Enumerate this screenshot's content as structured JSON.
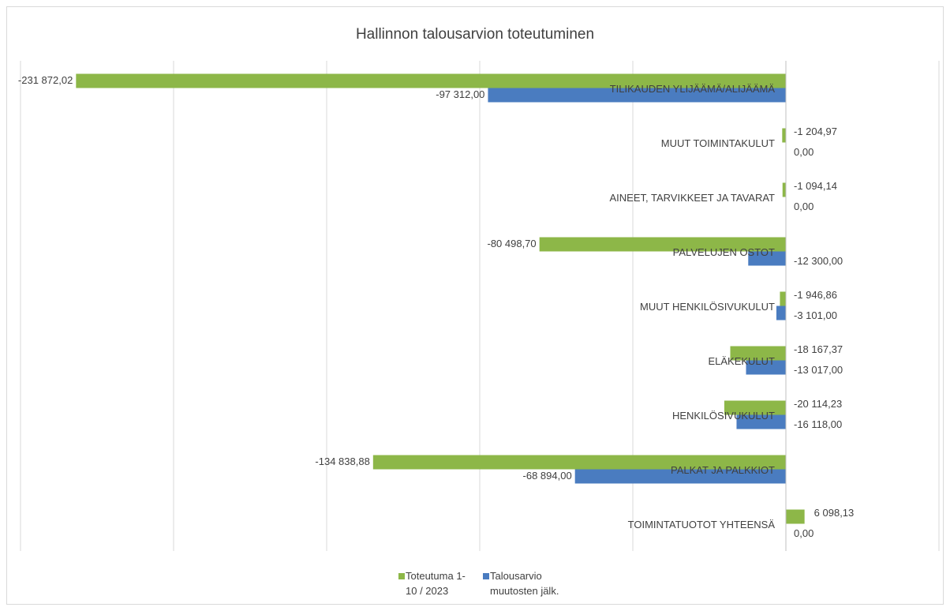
{
  "chart_data": {
    "type": "bar",
    "orientation": "horizontal",
    "title": "Hallinnon talousarvion toteutuminen",
    "categories": [
      "TILIKAUDEN YLIJÄÄMÄ/ALIJÄÄMÄ",
      "MUUT TOIMINTAKULUT",
      "AINEET, TARVIKKEET JA TAVARAT",
      "PALVELUJEN OSTOT",
      "MUUT HENKILÖSIVUKULUT",
      "ELÄKEKULUT",
      "HENKILÖSIVUKULUT",
      "PALKAT JA PALKKIOT",
      "TOIMINTATUOTOT YHTEENSÄ"
    ],
    "series": [
      {
        "name": "Toteutuma 1-10 / 2023",
        "color": "#8db748",
        "values": [
          -231872.02,
          -1204.97,
          -1094.14,
          -80498.7,
          -1946.86,
          -18167.37,
          -20114.23,
          -134838.88,
          6098.13
        ],
        "value_labels": [
          "-231 872,02",
          "-1 204,97",
          "-1 094,14",
          "-80 498,70",
          "-1 946,86",
          "-18 167,37",
          "-20 114,23",
          "-134 838,88",
          "6 098,13"
        ]
      },
      {
        "name": "Talousarvio muutosten jälk.",
        "color": "#4a7cc0",
        "values": [
          -97312,
          0,
          0,
          -12300,
          -3101,
          -13017,
          -16118,
          -68894,
          0
        ],
        "value_labels": [
          "-97 312,00",
          "0,00",
          "0,00",
          "-12 300,00",
          "-3 101,00",
          "-13 017,00",
          "-16 118,00",
          "-68 894,00",
          "0,00"
        ]
      }
    ],
    "xlim": [
      -250000,
      50000
    ],
    "xticks": [
      -250000,
      -200000,
      -150000,
      -100000,
      -50000,
      0,
      50000
    ],
    "grid": true,
    "legend": "bottom"
  }
}
